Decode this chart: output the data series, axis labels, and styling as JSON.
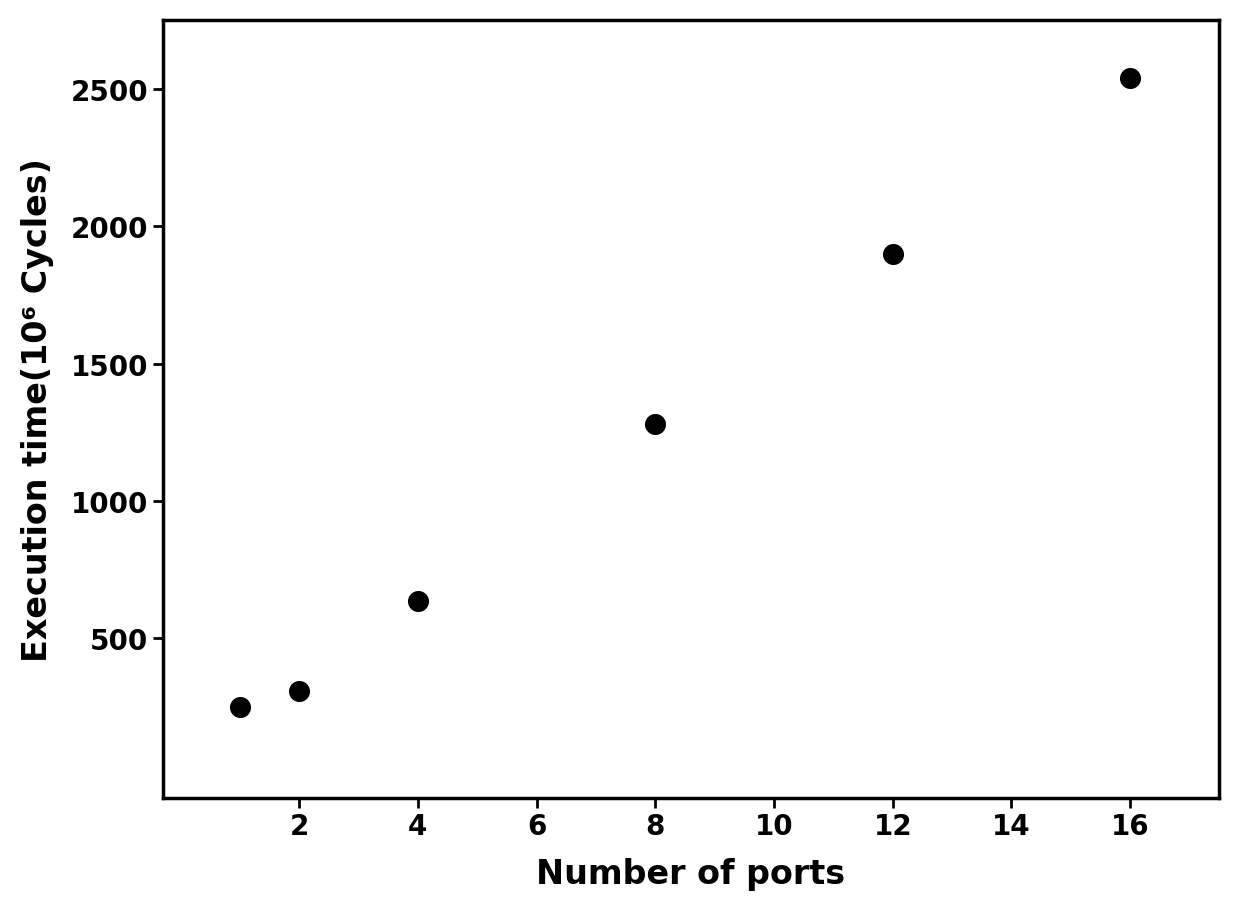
{
  "x": [
    1,
    2,
    4,
    8,
    12,
    16
  ],
  "y": [
    250,
    310,
    635,
    1280,
    1900,
    2540
  ],
  "xlabel": "Number of ports",
  "ylabel": "Execution time(10⁶ Cycles)",
  "xlim": [
    -0.3,
    17.5
  ],
  "ylim": [
    -80,
    2750
  ],
  "xticks": [
    2,
    4,
    6,
    8,
    10,
    12,
    14,
    16
  ],
  "yticks": [
    500,
    1000,
    1500,
    2000,
    2500
  ],
  "marker_color": "#000000",
  "marker_size": 200,
  "background_color": "#ffffff",
  "tick_labelsize": 20,
  "axis_labelsize": 24,
  "spine_linewidth": 2.5,
  "font_weight": "bold"
}
